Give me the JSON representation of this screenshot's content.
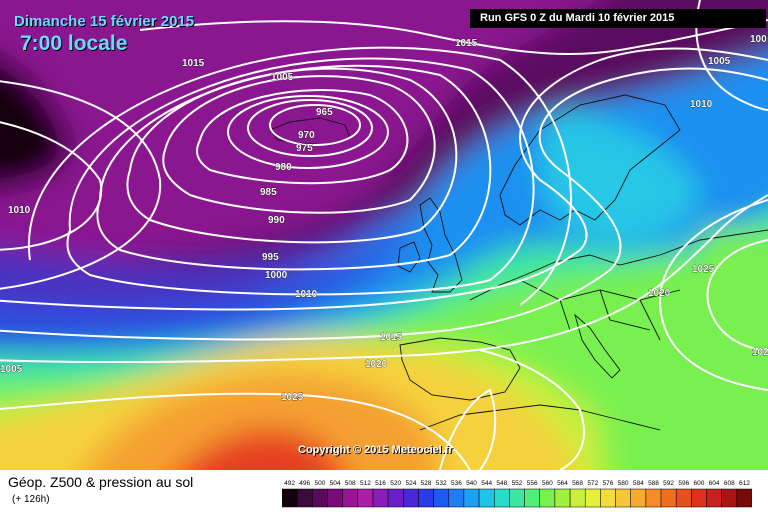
{
  "header": {
    "date": "Dimanche 15 février 2015",
    "time": "7:00 locale",
    "run": "Run GFS 0 Z du Mardi 10 février 2015"
  },
  "copyright": "Copyright © 2015 Meteociel.fr",
  "legend": {
    "title": "Géop. Z500 & pression au sol",
    "subtitle": "(+ 126h)",
    "scale_values": [
      "492",
      "496",
      "500",
      "504",
      "508",
      "512",
      "516",
      "520",
      "524",
      "528",
      "532",
      "536",
      "540",
      "544",
      "548",
      "552",
      "556",
      "560",
      "564",
      "568",
      "572",
      "576",
      "580",
      "584",
      "588",
      "592",
      "596",
      "600",
      "604",
      "608",
      "612"
    ],
    "scale_colors": [
      "#150010",
      "#3a0a3a",
      "#5a0a5a",
      "#7a0a7a",
      "#9a1495",
      "#aa1eaa",
      "#8a1eb9",
      "#6a1ec8",
      "#4a28d8",
      "#2a3ce6",
      "#1e5af0",
      "#1e7cf5",
      "#1ea0f5",
      "#1ec3e6",
      "#28dcc8",
      "#3ce6a0",
      "#50f078",
      "#78f050",
      "#a0f03c",
      "#c8f03c",
      "#e6f03c",
      "#f5dc3c",
      "#f5c83c",
      "#f5aa32",
      "#f58c28",
      "#f06e1e",
      "#e6501e",
      "#dc321e",
      "#c8201e",
      "#aa1414",
      "#780a0a"
    ]
  },
  "map": {
    "colors": {
      "z492": "#150010",
      "z504": "#5a1060",
      "z512": "#8a1890",
      "z520": "#4830c0",
      "z528": "#2a50e0",
      "z536": "#1e90f0",
      "z544": "#28c8e6",
      "z552": "#3ce6a0",
      "z560": "#78f050",
      "z568": "#c8f03c",
      "z576": "#f5d23c",
      "z584": "#f5a030",
      "z596": "#e64020"
    },
    "isobar_labels": [
      {
        "id": "1015-nw",
        "text": "1015"
      },
      {
        "id": "1015-n",
        "text": "1015"
      },
      {
        "id": "1005-ne",
        "text": "1005"
      },
      {
        "id": "1010-ne",
        "text": "1010"
      },
      {
        "id": "100-edge",
        "text": "100"
      },
      {
        "id": "1005-n",
        "text": "1005"
      },
      {
        "id": "965",
        "text": "965"
      },
      {
        "id": "970",
        "text": "970"
      },
      {
        "id": "975",
        "text": "975"
      },
      {
        "id": "980",
        "text": "980"
      },
      {
        "id": "985",
        "text": "985"
      },
      {
        "id": "990",
        "text": "990"
      },
      {
        "id": "995",
        "text": "995"
      },
      {
        "id": "1000",
        "text": "1000"
      },
      {
        "id": "1010-w",
        "text": "1010"
      },
      {
        "id": "1010-c",
        "text": "1010"
      },
      {
        "id": "1015-c",
        "text": "1015"
      },
      {
        "id": "1020-c",
        "text": "1020"
      },
      {
        "id": "1025-sw",
        "text": "1025"
      },
      {
        "id": "1005-w",
        "text": "1005"
      },
      {
        "id": "1020-e",
        "text": "1020"
      },
      {
        "id": "1025-e",
        "text": "1025"
      },
      {
        "id": "102-edge",
        "text": "102"
      }
    ]
  }
}
